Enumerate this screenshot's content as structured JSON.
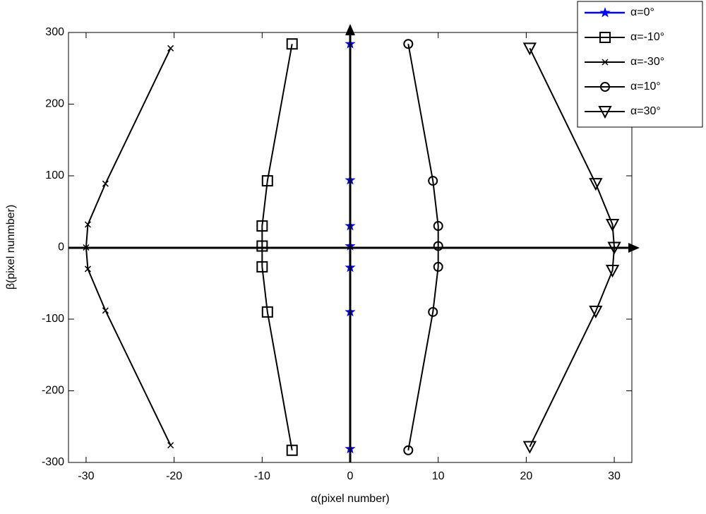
{
  "chart_data": {
    "type": "line",
    "xlabel": "α(pixel number)",
    "ylabel": "β(pixel nunmber)",
    "xlim": [
      -32,
      32
    ],
    "ylim": [
      -300,
      300
    ],
    "xticks": [
      -30,
      -20,
      -10,
      0,
      10,
      20,
      30
    ],
    "yticks": [
      -300,
      -200,
      -100,
      0,
      100,
      200,
      300
    ],
    "legend": "outside-top-right",
    "series": [
      {
        "name": "α=0°",
        "color": "#0000ff",
        "marker": "star",
        "x": [
          0,
          0,
          0,
          0,
          0,
          0,
          0
        ],
        "values": [
          -281,
          -90,
          -28,
          2,
          30,
          94,
          284
        ]
      },
      {
        "name": "α=-10°",
        "color": "#000000",
        "marker": "square",
        "x": [
          -6.6,
          -9.4,
          -10,
          -10,
          -10,
          -9.4,
          -6.6
        ],
        "values": [
          -283,
          -90,
          -27,
          2,
          30,
          93,
          284
        ]
      },
      {
        "name": "α=-30°",
        "color": "#000000",
        "marker": "x",
        "x": [
          -20.4,
          -27.8,
          -29.8,
          -30,
          -29.8,
          -27.8,
          -20.4
        ],
        "values": [
          -276,
          -88,
          -30,
          0,
          32,
          89,
          278
        ]
      },
      {
        "name": "α=10°",
        "color": "#000000",
        "marker": "circle",
        "x": [
          6.6,
          9.4,
          10,
          10,
          10,
          9.4,
          6.6
        ],
        "values": [
          -283,
          -90,
          -27,
          2,
          30,
          93,
          284
        ]
      },
      {
        "name": "α=30°",
        "color": "#000000",
        "marker": "triangle-down",
        "x": [
          20.4,
          27.9,
          29.8,
          30,
          29.8,
          27.9,
          20.4
        ],
        "values": [
          -278,
          -89,
          -32,
          0,
          32,
          89,
          278
        ]
      }
    ]
  }
}
